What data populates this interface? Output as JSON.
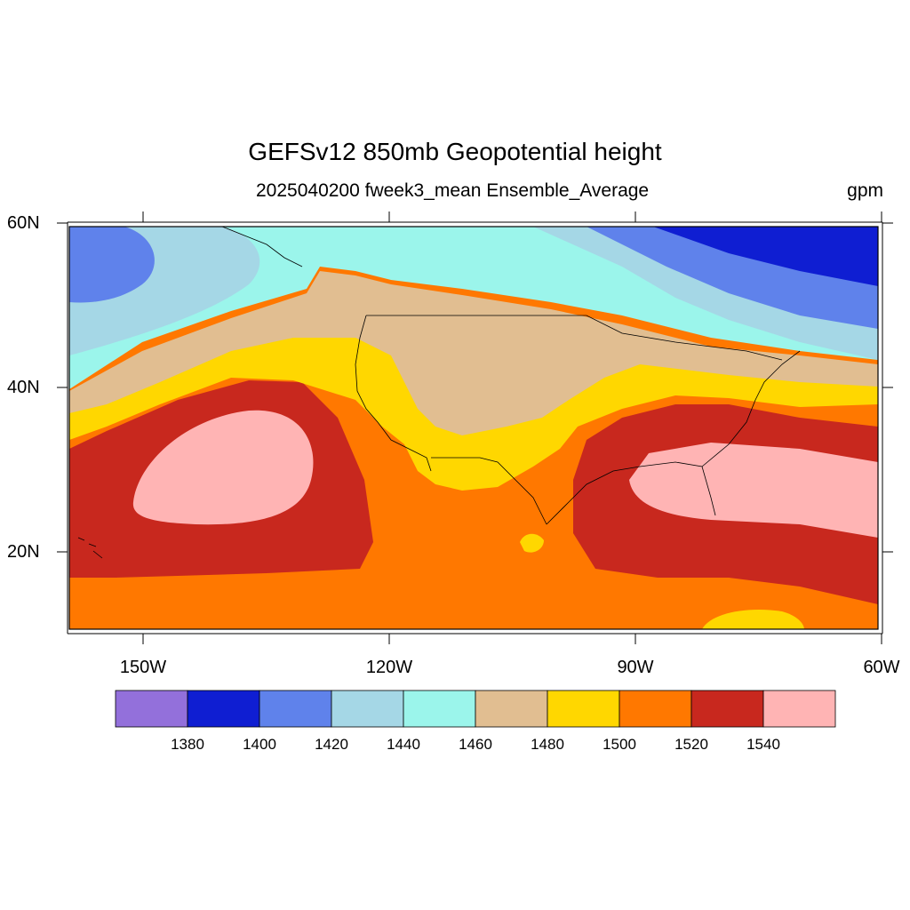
{
  "title": "GEFSv12 850mb Geopotential height",
  "subtitle": "2025040200 fweek3_mean Ensemble_Average",
  "units": "gpm",
  "lat_labels": [
    "60N",
    "40N",
    "20N"
  ],
  "lon_labels": [
    "150W",
    "120W",
    "90W",
    "60W"
  ],
  "colorbar": {
    "colors": [
      "#9370db",
      "#0f1ed2",
      "#5f82eb",
      "#a5d7e6",
      "#9bf5eb",
      "#e1be91",
      "#ffd700",
      "#ff7800",
      "#c8281e",
      "#ffb4b4"
    ],
    "labels": [
      "1380",
      "1400",
      "1420",
      "1440",
      "1460",
      "1480",
      "1500",
      "1520",
      "1540"
    ]
  },
  "map": {
    "domain": {
      "lon_min": -160,
      "lon_max": -60,
      "lat_min": 10,
      "lat_max": 60
    },
    "projection": "cylindrical equidistant",
    "coastlines": "black thin outlines, US state borders"
  }
}
